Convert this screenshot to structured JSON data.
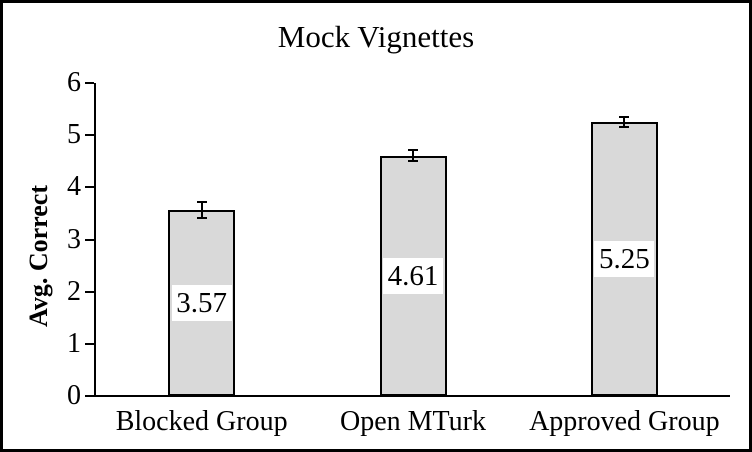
{
  "chart_data": {
    "type": "bar",
    "title": "Mock Vignettes",
    "xlabel": "",
    "ylabel": "Avg. Correct",
    "categories": [
      "Blocked Group",
      "Open MTurk",
      "Approved Group"
    ],
    "values": [
      3.57,
      4.61,
      5.25
    ],
    "errors": [
      0.15,
      0.1,
      0.09
    ],
    "data_labels": [
      "3.57",
      "4.61",
      "5.25"
    ],
    "yticks": [
      0,
      1,
      2,
      3,
      4,
      5,
      6
    ],
    "ylim": [
      0,
      6
    ],
    "grid": false,
    "legend_position": "none",
    "colors": {
      "bar_fill": "#d9d9d9",
      "bar_border": "#000000",
      "axis": "#000000",
      "text": "#000000",
      "background": "#ffffff",
      "data_label_bg": "#ffffff"
    }
  }
}
